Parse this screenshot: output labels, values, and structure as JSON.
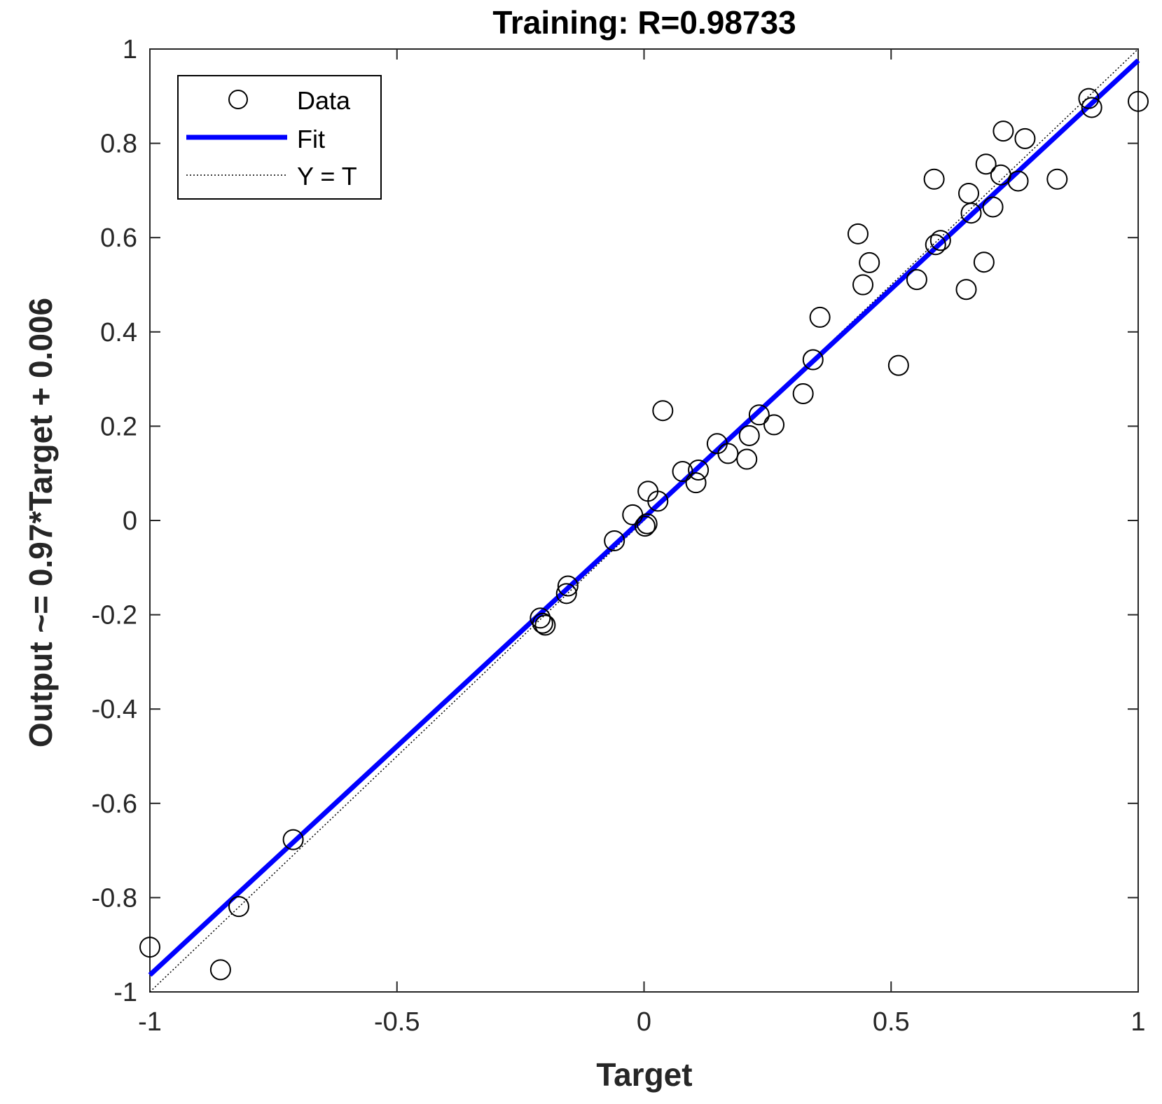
{
  "chart_data": {
    "type": "scatter",
    "title": "Training: R=0.98733",
    "xlabel": "Target",
    "ylabel": "Output ~= 0.97*Target + 0.006",
    "xlim": [
      -1,
      1
    ],
    "ylim": [
      -1,
      1
    ],
    "x_ticks": [
      -1,
      -0.5,
      0,
      0.5,
      1
    ],
    "x_tick_labels": [
      "-1",
      "-0.5",
      "0",
      "0.5",
      "1"
    ],
    "y_ticks": [
      -1,
      -0.8,
      -0.6,
      -0.4,
      -0.2,
      0,
      0.2,
      0.4,
      0.6,
      0.8,
      1
    ],
    "y_tick_labels": [
      "-1",
      "-0.8",
      "-0.6",
      "-0.4",
      "-0.2",
      "0",
      "0.2",
      "0.4",
      "0.6",
      "0.8",
      "1"
    ],
    "grid": false,
    "legend": {
      "position": "top-left",
      "entries": [
        "Data",
        "Fit",
        "Y = T"
      ]
    },
    "fit": {
      "slope": 0.97,
      "intercept": 0.006,
      "color": "#0000ff"
    },
    "identity_line": {
      "slope": 1,
      "intercept": 0,
      "style": "dotted",
      "color": "#000000"
    },
    "marker_color": "#000000",
    "series": [
      {
        "name": "Data",
        "points": [
          [
            -1.0,
            -0.905
          ],
          [
            -0.857,
            -0.953
          ],
          [
            -0.82,
            -0.819
          ],
          [
            -0.71,
            -0.677
          ],
          [
            -0.21,
            -0.207
          ],
          [
            -0.2,
            -0.222
          ],
          [
            -0.205,
            -0.218
          ],
          [
            -0.154,
            -0.139
          ],
          [
            -0.157,
            -0.155
          ],
          [
            -0.06,
            -0.043
          ],
          [
            -0.023,
            0.012
          ],
          [
            0.002,
            -0.012
          ],
          [
            0.006,
            -0.007
          ],
          [
            0.008,
            0.062
          ],
          [
            0.028,
            0.041
          ],
          [
            0.038,
            0.233
          ],
          [
            0.078,
            0.104
          ],
          [
            0.105,
            0.08
          ],
          [
            0.11,
            0.107
          ],
          [
            0.148,
            0.163
          ],
          [
            0.17,
            0.142
          ],
          [
            0.208,
            0.13
          ],
          [
            0.213,
            0.18
          ],
          [
            0.233,
            0.224
          ],
          [
            0.263,
            0.203
          ],
          [
            0.322,
            0.269
          ],
          [
            0.342,
            0.341
          ],
          [
            0.356,
            0.431
          ],
          [
            0.433,
            0.608
          ],
          [
            0.443,
            0.5
          ],
          [
            0.456,
            0.547
          ],
          [
            0.515,
            0.329
          ],
          [
            0.552,
            0.511
          ],
          [
            0.587,
            0.724
          ],
          [
            0.59,
            0.585
          ],
          [
            0.6,
            0.594
          ],
          [
            0.652,
            0.49
          ],
          [
            0.657,
            0.694
          ],
          [
            0.662,
            0.652
          ],
          [
            0.688,
            0.548
          ],
          [
            0.692,
            0.756
          ],
          [
            0.706,
            0.665
          ],
          [
            0.722,
            0.733
          ],
          [
            0.727,
            0.826
          ],
          [
            0.757,
            0.72
          ],
          [
            0.771,
            0.81
          ],
          [
            0.836,
            0.724
          ],
          [
            0.9,
            0.895
          ],
          [
            0.906,
            0.876
          ],
          [
            1.0,
            0.889
          ]
        ]
      }
    ]
  }
}
